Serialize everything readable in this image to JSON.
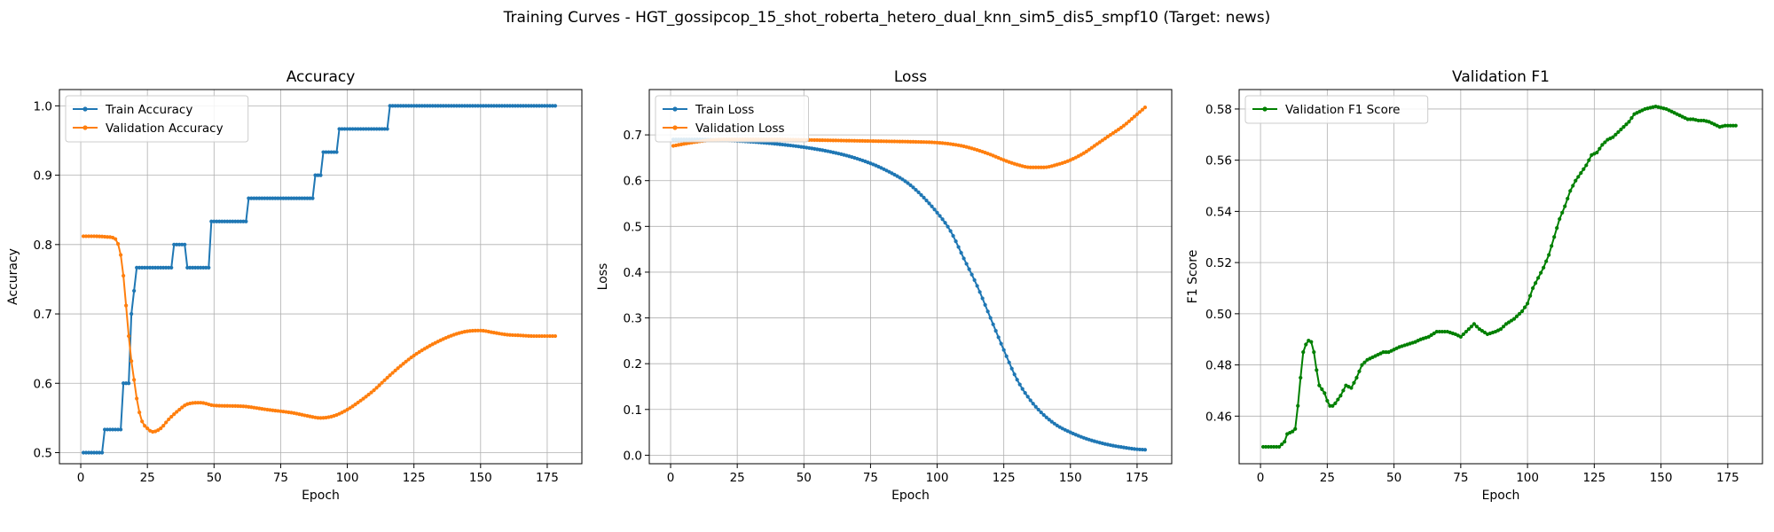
{
  "suptitle": "Training Curves - HGT_gossipcop_15_shot_roberta_hetero_dual_knn_sim5_dis5_smpf10 (Target: news)",
  "chart_data": [
    {
      "type": "line",
      "title": "Accuracy",
      "xlabel": "Epoch",
      "ylabel": "Accuracy",
      "xlim": [
        -8,
        188
      ],
      "ylim": [
        0.484,
        1.0235
      ],
      "xticks": [
        0,
        25,
        50,
        75,
        100,
        125,
        150,
        175
      ],
      "yticks": [
        0.5,
        0.6,
        0.7,
        0.8,
        0.9,
        1.0
      ],
      "ytick_decimals": 1,
      "grid": true,
      "legend_position": "upper-left",
      "n_epochs": 178,
      "series": [
        {
          "name": "Train Accuracy",
          "color": "#1f77b4",
          "kind": "step",
          "points": [
            [
              1,
              0.5
            ],
            [
              8,
              0.5
            ],
            [
              9,
              0.5333
            ],
            [
              15,
              0.5333
            ],
            [
              16,
              0.6
            ],
            [
              18,
              0.6
            ],
            [
              19,
              0.7
            ],
            [
              20,
              0.7333
            ],
            [
              21,
              0.7667
            ],
            [
              34,
              0.7667
            ],
            [
              35,
              0.8
            ],
            [
              39,
              0.8
            ],
            [
              40,
              0.7667
            ],
            [
              48,
              0.7667
            ],
            [
              49,
              0.8333
            ],
            [
              62,
              0.8333
            ],
            [
              63,
              0.8667
            ],
            [
              87,
              0.8667
            ],
            [
              88,
              0.9
            ],
            [
              90,
              0.9
            ],
            [
              91,
              0.9333
            ],
            [
              96,
              0.9333
            ],
            [
              97,
              0.9667
            ],
            [
              115,
              0.9667
            ],
            [
              116,
              1.0
            ],
            [
              178,
              1.0
            ]
          ]
        },
        {
          "name": "Validation Accuracy",
          "color": "#ff7f0e",
          "kind": "smooth",
          "points": [
            [
              1,
              0.812
            ],
            [
              5,
              0.812
            ],
            [
              10,
              0.811
            ],
            [
              13,
              0.808
            ],
            [
              15,
              0.785
            ],
            [
              16,
              0.755
            ],
            [
              17,
              0.712
            ],
            [
              18,
              0.668
            ],
            [
              19,
              0.632
            ],
            [
              20,
              0.605
            ],
            [
              21,
              0.578
            ],
            [
              22,
              0.558
            ],
            [
              23,
              0.545
            ],
            [
              25,
              0.535
            ],
            [
              27,
              0.53
            ],
            [
              30,
              0.535
            ],
            [
              33,
              0.548
            ],
            [
              37,
              0.562
            ],
            [
              40,
              0.57
            ],
            [
              45,
              0.572
            ],
            [
              50,
              0.568
            ],
            [
              60,
              0.567
            ],
            [
              70,
              0.562
            ],
            [
              80,
              0.557
            ],
            [
              85,
              0.553
            ],
            [
              90,
              0.55
            ],
            [
              95,
              0.553
            ],
            [
              100,
              0.562
            ],
            [
              105,
              0.575
            ],
            [
              110,
              0.59
            ],
            [
              115,
              0.608
            ],
            [
              120,
              0.625
            ],
            [
              125,
              0.64
            ],
            [
              130,
              0.652
            ],
            [
              135,
              0.662
            ],
            [
              140,
              0.67
            ],
            [
              145,
              0.675
            ],
            [
              150,
              0.676
            ],
            [
              155,
              0.673
            ],
            [
              160,
              0.67
            ],
            [
              165,
              0.669
            ],
            [
              170,
              0.668
            ],
            [
              178,
              0.668
            ]
          ]
        }
      ]
    },
    {
      "type": "line",
      "title": "Loss",
      "xlabel": "Epoch",
      "ylabel": "Loss",
      "xlim": [
        -8,
        188
      ],
      "ylim": [
        -0.0186,
        0.799
      ],
      "xticks": [
        0,
        25,
        50,
        75,
        100,
        125,
        150,
        175
      ],
      "yticks": [
        0.0,
        0.1,
        0.2,
        0.3,
        0.4,
        0.5,
        0.6,
        0.7
      ],
      "ytick_decimals": 1,
      "grid": true,
      "legend_position": "upper-left",
      "n_epochs": 178,
      "series": [
        {
          "name": "Train Loss",
          "color": "#1f77b4",
          "kind": "smooth",
          "points": [
            [
              1,
              0.69
            ],
            [
              10,
              0.69
            ],
            [
              20,
              0.688
            ],
            [
              30,
              0.685
            ],
            [
              40,
              0.68
            ],
            [
              50,
              0.673
            ],
            [
              60,
              0.663
            ],
            [
              70,
              0.648
            ],
            [
              80,
              0.625
            ],
            [
              90,
              0.59
            ],
            [
              100,
              0.53
            ],
            [
              105,
              0.49
            ],
            [
              110,
              0.43
            ],
            [
              115,
              0.37
            ],
            [
              120,
              0.3
            ],
            [
              125,
              0.23
            ],
            [
              130,
              0.165
            ],
            [
              135,
              0.12
            ],
            [
              140,
              0.088
            ],
            [
              145,
              0.065
            ],
            [
              150,
              0.05
            ],
            [
              155,
              0.038
            ],
            [
              160,
              0.029
            ],
            [
              165,
              0.022
            ],
            [
              170,
              0.017
            ],
            [
              175,
              0.013
            ],
            [
              178,
              0.012
            ]
          ]
        },
        {
          "name": "Validation Loss",
          "color": "#ff7f0e",
          "kind": "smooth",
          "points": [
            [
              1,
              0.676
            ],
            [
              10,
              0.685
            ],
            [
              20,
              0.69
            ],
            [
              30,
              0.69
            ],
            [
              40,
              0.69
            ],
            [
              50,
              0.689
            ],
            [
              60,
              0.688
            ],
            [
              70,
              0.687
            ],
            [
              80,
              0.686
            ],
            [
              90,
              0.685
            ],
            [
              100,
              0.683
            ],
            [
              105,
              0.68
            ],
            [
              110,
              0.675
            ],
            [
              115,
              0.667
            ],
            [
              120,
              0.657
            ],
            [
              125,
              0.645
            ],
            [
              130,
              0.635
            ],
            [
              135,
              0.629
            ],
            [
              140,
              0.629
            ],
            [
              145,
              0.635
            ],
            [
              150,
              0.645
            ],
            [
              155,
              0.66
            ],
            [
              160,
              0.68
            ],
            [
              165,
              0.7
            ],
            [
              170,
              0.72
            ],
            [
              175,
              0.745
            ],
            [
              178,
              0.76
            ]
          ]
        }
      ]
    },
    {
      "type": "line",
      "title": "Validation F1",
      "xlabel": "Epoch",
      "ylabel": "F1 Score",
      "xlim": [
        -8,
        188
      ],
      "ylim": [
        0.4414,
        0.5876
      ],
      "xticks": [
        0,
        25,
        50,
        75,
        100,
        125,
        150,
        175
      ],
      "yticks": [
        0.46,
        0.48,
        0.5,
        0.52,
        0.54,
        0.56,
        0.58
      ],
      "ytick_decimals": 2,
      "grid": true,
      "legend_position": "upper-left",
      "n_epochs": 178,
      "series": [
        {
          "name": "Validation F1 Score",
          "color": "#008000",
          "kind": "linear",
          "points": [
            [
              1,
              0.448
            ],
            [
              7,
              0.448
            ],
            [
              9,
              0.45
            ],
            [
              10,
              0.453
            ],
            [
              12,
              0.454
            ],
            [
              13,
              0.455
            ],
            [
              14,
              0.464
            ],
            [
              15,
              0.475
            ],
            [
              16,
              0.485
            ],
            [
              17,
              0.488
            ],
            [
              18,
              0.4895
            ],
            [
              19,
              0.489
            ],
            [
              20,
              0.485
            ],
            [
              21,
              0.478
            ],
            [
              22,
              0.472
            ],
            [
              24,
              0.469
            ],
            [
              25,
              0.466
            ],
            [
              26,
              0.464
            ],
            [
              27,
              0.464
            ],
            [
              28,
              0.465
            ],
            [
              30,
              0.468
            ],
            [
              32,
              0.472
            ],
            [
              34,
              0.471
            ],
            [
              36,
              0.475
            ],
            [
              38,
              0.48
            ],
            [
              40,
              0.482
            ],
            [
              42,
              0.483
            ],
            [
              44,
              0.484
            ],
            [
              46,
              0.485
            ],
            [
              48,
              0.485
            ],
            [
              50,
              0.486
            ],
            [
              52,
              0.487
            ],
            [
              55,
              0.488
            ],
            [
              58,
              0.489
            ],
            [
              60,
              0.49
            ],
            [
              63,
              0.491
            ],
            [
              66,
              0.493
            ],
            [
              70,
              0.493
            ],
            [
              73,
              0.492
            ],
            [
              75,
              0.491
            ],
            [
              77,
              0.493
            ],
            [
              80,
              0.496
            ],
            [
              82,
              0.494
            ],
            [
              85,
              0.492
            ],
            [
              88,
              0.493
            ],
            [
              90,
              0.494
            ],
            [
              92,
              0.496
            ],
            [
              95,
              0.498
            ],
            [
              98,
              0.501
            ],
            [
              100,
              0.504
            ],
            [
              102,
              0.51
            ],
            [
              104,
              0.514
            ],
            [
              106,
              0.518
            ],
            [
              108,
              0.523
            ],
            [
              110,
              0.53
            ],
            [
              112,
              0.537
            ],
            [
              114,
              0.542
            ],
            [
              116,
              0.548
            ],
            [
              118,
              0.552
            ],
            [
              120,
              0.555
            ],
            [
              122,
              0.558
            ],
            [
              124,
              0.562
            ],
            [
              126,
              0.563
            ],
            [
              128,
              0.566
            ],
            [
              130,
              0.568
            ],
            [
              132,
              0.569
            ],
            [
              134,
              0.571
            ],
            [
              136,
              0.573
            ],
            [
              138,
              0.575
            ],
            [
              140,
              0.578
            ],
            [
              142,
              0.579
            ],
            [
              144,
              0.58
            ],
            [
              146,
              0.5805
            ],
            [
              148,
              0.581
            ],
            [
              150,
              0.5805
            ],
            [
              152,
              0.58
            ],
            [
              154,
              0.579
            ],
            [
              156,
              0.578
            ],
            [
              158,
              0.577
            ],
            [
              160,
              0.576
            ],
            [
              162,
              0.576
            ],
            [
              164,
              0.5755
            ],
            [
              166,
              0.5755
            ],
            [
              168,
              0.575
            ],
            [
              170,
              0.574
            ],
            [
              172,
              0.573
            ],
            [
              174,
              0.5735
            ],
            [
              176,
              0.5735
            ],
            [
              178,
              0.5735
            ]
          ]
        }
      ]
    }
  ]
}
